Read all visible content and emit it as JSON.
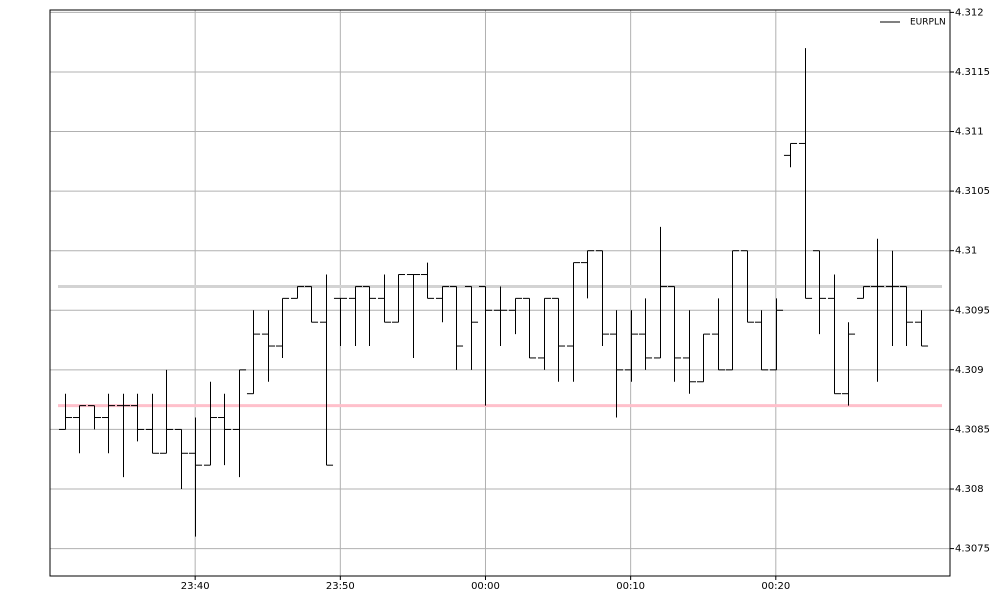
{
  "chart_data": {
    "type": "ohlc",
    "x": [
      "23:31",
      "23:32",
      "23:33",
      "23:34",
      "23:35",
      "23:36",
      "23:37",
      "23:38",
      "23:39",
      "23:40",
      "23:41",
      "23:42",
      "23:43",
      "23:44",
      "23:45",
      "23:46",
      "23:47",
      "23:48",
      "23:49",
      "23:50",
      "23:51",
      "23:52",
      "23:53",
      "23:54",
      "23:55",
      "23:56",
      "23:57",
      "23:58",
      "23:59",
      "00:00",
      "00:01",
      "00:02",
      "00:03",
      "00:04",
      "00:05",
      "00:06",
      "00:07",
      "00:08",
      "00:09",
      "00:10",
      "00:11",
      "00:12",
      "00:13",
      "00:14",
      "00:15",
      "00:16",
      "00:17",
      "00:18",
      "00:19",
      "00:20",
      "00:21",
      "00:22",
      "00:23",
      "00:24",
      "00:25",
      "00:26",
      "00:27",
      "00:28",
      "00:29",
      "00:30"
    ],
    "series": [
      {
        "name": "EURPLN",
        "color": "#000000",
        "open": [
          4.3085,
          4.3086,
          4.3087,
          4.3086,
          4.3087,
          4.3087,
          4.3085,
          4.3083,
          4.3085,
          4.3083,
          4.3082,
          4.3086,
          4.3085,
          4.3088,
          4.3093,
          4.3092,
          4.3096,
          4.3097,
          4.3094,
          4.3096,
          4.3096,
          4.3097,
          4.3096,
          4.3094,
          4.3098,
          4.3098,
          4.3096,
          4.3097,
          4.3097,
          4.3097,
          4.3095,
          4.3095,
          4.3096,
          4.3091,
          4.3096,
          4.3092,
          4.3099,
          4.31,
          4.3093,
          4.309,
          4.3093,
          4.3091,
          4.3097,
          4.3091,
          4.3089,
          4.3093,
          4.309,
          4.31,
          4.3094,
          4.309,
          4.3108,
          4.3109,
          4.31,
          4.3096,
          4.3088,
          4.3096,
          4.3097,
          4.3097,
          4.3097,
          4.3094
        ],
        "high": [
          4.3088,
          4.3087,
          4.3087,
          4.3088,
          4.3088,
          4.3088,
          4.3088,
          4.309,
          4.3085,
          4.3086,
          4.3089,
          4.3088,
          4.309,
          4.3095,
          4.3095,
          4.3096,
          4.3097,
          4.3097,
          4.3098,
          4.3096,
          4.3097,
          4.3097,
          4.3098,
          4.3098,
          4.3098,
          4.3099,
          4.3097,
          4.3097,
          4.3097,
          4.3097,
          4.3097,
          4.3096,
          4.3096,
          4.3096,
          4.3096,
          4.3099,
          4.31,
          4.31,
          4.3095,
          4.3095,
          4.3096,
          4.3102,
          4.3097,
          4.3095,
          4.3093,
          4.3096,
          4.31,
          4.31,
          4.3095,
          4.3096,
          4.3109,
          4.3117,
          4.31,
          4.3098,
          4.3094,
          4.3097,
          4.3101,
          4.31,
          4.3097,
          4.3095
        ],
        "low": [
          4.3085,
          4.3083,
          4.3085,
          4.3083,
          4.3081,
          4.3084,
          4.3083,
          4.3083,
          4.308,
          4.3076,
          4.3082,
          4.3082,
          4.3081,
          4.3088,
          4.3089,
          4.3091,
          4.3096,
          4.3094,
          4.3082,
          4.3092,
          4.3092,
          4.3092,
          4.3094,
          4.3094,
          4.3091,
          4.3096,
          4.3094,
          4.309,
          4.309,
          4.3087,
          4.3092,
          4.3093,
          4.3091,
          4.309,
          4.3089,
          4.3089,
          4.3096,
          4.3092,
          4.3086,
          4.3089,
          4.309,
          4.3091,
          4.3089,
          4.3088,
          4.3089,
          4.309,
          4.309,
          4.3094,
          4.309,
          4.309,
          4.3107,
          4.3096,
          4.3093,
          4.3088,
          4.3087,
          4.3096,
          4.3089,
          4.3092,
          4.3092,
          4.3092
        ],
        "close": [
          4.3086,
          4.3087,
          4.3086,
          4.3087,
          4.3087,
          4.3085,
          4.3083,
          4.3085,
          4.3083,
          4.3082,
          4.3086,
          4.3085,
          4.309,
          4.3093,
          4.3092,
          4.3096,
          4.3097,
          4.3094,
          4.3082,
          4.3096,
          4.3097,
          4.3096,
          4.3094,
          4.3098,
          4.3098,
          4.3096,
          4.3097,
          4.3092,
          4.3094,
          4.3095,
          4.3095,
          4.3096,
          4.3091,
          4.3096,
          4.3092,
          4.3099,
          4.31,
          4.3093,
          4.309,
          4.3093,
          4.3091,
          4.3097,
          4.3091,
          4.3089,
          4.3093,
          4.309,
          4.31,
          4.3094,
          4.309,
          4.3095,
          4.3109,
          4.3096,
          4.3096,
          4.3088,
          4.3093,
          4.3097,
          4.3097,
          4.3097,
          4.3094,
          4.3092
        ]
      }
    ],
    "hlines": [
      {
        "value": 4.3097,
        "color": "#d3d3d3"
      },
      {
        "value": 4.3087,
        "color": "#ffc0cb"
      }
    ],
    "xlim": [
      "23:30",
      "00:32"
    ],
    "xticks": [
      "23:40",
      "23:50",
      "00:00",
      "00:10",
      "00:20"
    ],
    "ylim": [
      4.30727,
      4.31202
    ],
    "yticks": [
      4.3075,
      4.308,
      4.3085,
      4.309,
      4.3095,
      4.31,
      4.3105,
      4.311,
      4.3115,
      4.312
    ],
    "grid": true,
    "legend": "upper right"
  }
}
